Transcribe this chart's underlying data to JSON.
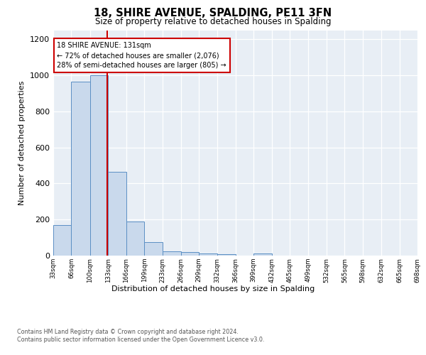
{
  "title": "18, SHIRE AVENUE, SPALDING, PE11 3FN",
  "subtitle": "Size of property relative to detached houses in Spalding",
  "xlabel": "Distribution of detached houses by size in Spalding",
  "ylabel": "Number of detached properties",
  "bin_edges": [
    33,
    66,
    100,
    133,
    166,
    199,
    233,
    266,
    299,
    332,
    366,
    399,
    432,
    465,
    499,
    532,
    565,
    598,
    632,
    665,
    698
  ],
  "bin_labels": [
    "33sqm",
    "66sqm",
    "100sqm",
    "133sqm",
    "166sqm",
    "199sqm",
    "233sqm",
    "266sqm",
    "299sqm",
    "332sqm",
    "366sqm",
    "399sqm",
    "432sqm",
    "465sqm",
    "499sqm",
    "532sqm",
    "565sqm",
    "598sqm",
    "632sqm",
    "665sqm",
    "698sqm"
  ],
  "bar_heights": [
    170,
    965,
    1000,
    465,
    190,
    75,
    25,
    18,
    10,
    8,
    0,
    10,
    0,
    0,
    0,
    0,
    0,
    0,
    0,
    0
  ],
  "bar_color": "#c9d9ec",
  "bar_edge_color": "#5b8fc4",
  "property_size": 131,
  "marker_color": "#cc0000",
  "annotation_line1": "18 SHIRE AVENUE: 131sqm",
  "annotation_line2": "← 72% of detached houses are smaller (2,076)",
  "annotation_line3": "28% of semi-detached houses are larger (805) →",
  "ylim": [
    0,
    1250
  ],
  "yticks": [
    0,
    200,
    400,
    600,
    800,
    1000,
    1200
  ],
  "background_color": "#e8eef5",
  "footer_line1": "Contains HM Land Registry data © Crown copyright and database right 2024.",
  "footer_line2": "Contains public sector information licensed under the Open Government Licence v3.0."
}
